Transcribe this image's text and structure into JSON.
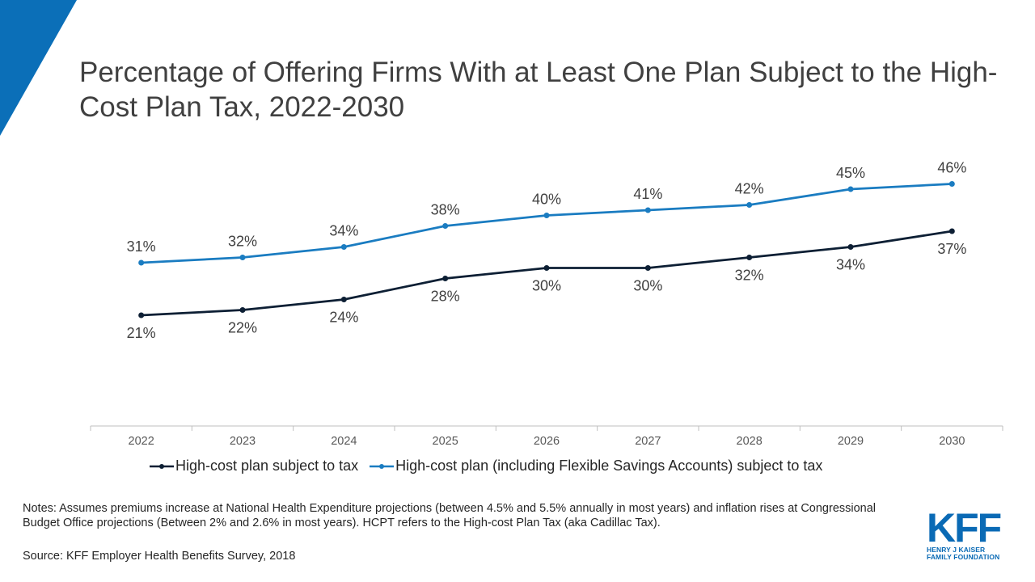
{
  "title": "Percentage of Offering Firms With at Least One Plan Subject to the High-Cost Plan Tax, 2022-2030",
  "colors": {
    "accent_blue": "#0b6fb8",
    "line_light_blue": "#1a7cc1",
    "line_dark_navy": "#0d1f34",
    "axis_gray": "#bfbfbf",
    "text_gray": "#404040"
  },
  "chart_data": {
    "type": "line",
    "categories": [
      "2022",
      "2023",
      "2024",
      "2025",
      "2026",
      "2027",
      "2028",
      "2029",
      "2030"
    ],
    "series": [
      {
        "name": "High-cost plan subject to tax",
        "color": "#0d1f34",
        "values": [
          21,
          22,
          24,
          28,
          30,
          30,
          32,
          34,
          37
        ],
        "labels": [
          "21%",
          "22%",
          "24%",
          "28%",
          "30%",
          "30%",
          "32%",
          "34%",
          "37%"
        ],
        "label_position": "below"
      },
      {
        "name": "High-cost plan (including Flexible Savings Accounts) subject to tax",
        "color": "#1a7cc1",
        "values": [
          31,
          32,
          34,
          38,
          40,
          41,
          42,
          45,
          46
        ],
        "labels": [
          "31%",
          "32%",
          "34%",
          "38%",
          "40%",
          "41%",
          "42%",
          "45%",
          "46%"
        ],
        "label_position": "above"
      }
    ],
    "ylim": [
      0,
      50
    ],
    "grid": false,
    "legend": "bottom"
  },
  "notes": "Notes: Assumes premiums increase at National Health Expenditure projections (between 4.5% and 5.5% annually  in most years) and inflation rises at Congressional Budget Office projections (Between 2% and 2.6% in most years). HCPT refers to the High-cost Plan Tax (aka Cadillac Tax).",
  "source": "Source: KFF Employer Health Benefits Survey, 2018",
  "logo": {
    "mark": "KFF",
    "subtitle": "HENRY J KAISER\nFAMILY FOUNDATION"
  }
}
